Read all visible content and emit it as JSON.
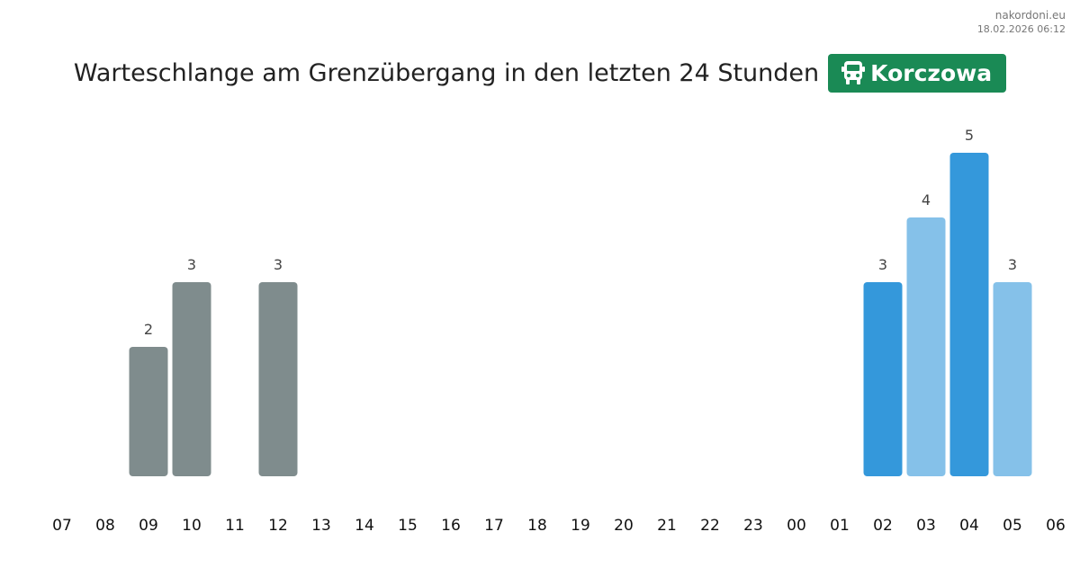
{
  "site": {
    "name": "nakordoni.eu",
    "timestamp": "18.02.2026 06:12"
  },
  "header": {
    "title": "Warteschlange am Grenzübergang in den letzten 24 Stunden",
    "crossing": "Korczowa",
    "crossing_icon": "bus-icon",
    "badge_color": "#1a8a55"
  },
  "chart_data": {
    "type": "bar",
    "title": "Warteschlange am Grenzübergang in den letzten 24 Stunden",
    "xlabel": "",
    "ylabel": "",
    "ylim": [
      0,
      5
    ],
    "grid": false,
    "categories": [
      "07",
      "08",
      "09",
      "10",
      "11",
      "12",
      "13",
      "14",
      "15",
      "16",
      "17",
      "18",
      "19",
      "20",
      "21",
      "22",
      "23",
      "00",
      "01",
      "02",
      "03",
      "04",
      "05",
      "06"
    ],
    "values": [
      null,
      null,
      2,
      3,
      null,
      3,
      null,
      null,
      null,
      null,
      null,
      null,
      null,
      null,
      null,
      null,
      null,
      null,
      null,
      3,
      4,
      5,
      3,
      null
    ],
    "colors": {
      "past": "#7f8c8d",
      "recent_dark": "#3498db",
      "recent_light": "#85c1e9",
      "bar_label": "#444444",
      "tick_label": "#111111"
    },
    "bar_colors": [
      null,
      null,
      "past",
      "past",
      null,
      "past",
      null,
      null,
      null,
      null,
      null,
      null,
      null,
      null,
      null,
      null,
      null,
      null,
      null,
      "recent_dark",
      "recent_light",
      "recent_dark",
      "recent_light",
      null
    ]
  }
}
